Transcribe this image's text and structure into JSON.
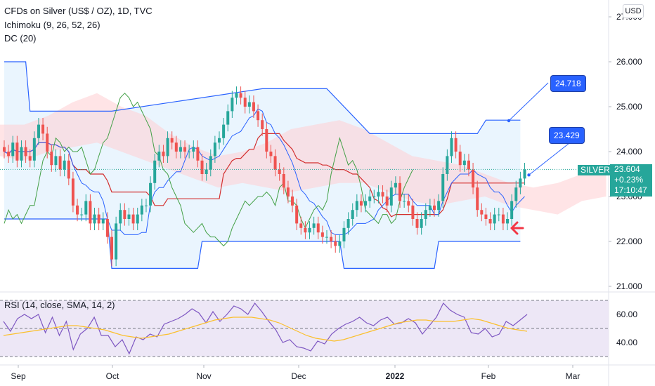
{
  "legend": {
    "title": "CFDs on Silver (US$ / OZ), 1D, TVC",
    "ichimoku": "Ichimoku (9, 26, 52, 26)",
    "dc": "DC (20)",
    "rsi": "RSI (14, close, SMA, 14, 2)"
  },
  "currency": "USD",
  "symbol_tag": "SILVER",
  "price_box": {
    "price": "23.604",
    "change": "+0.23%",
    "countdown": "17:10:47"
  },
  "callouts": {
    "upper": "24.718",
    "lower": "23.429"
  },
  "price_axis_labels": [
    "27.000",
    "26.000",
    "25.000",
    "24.000",
    "23.000",
    "22.000",
    "21.000"
  ],
  "rsi_axis_labels": [
    "60.00",
    "40.00"
  ],
  "time_axis_labels": [
    "Sep",
    "Oct",
    "Nov",
    "Dec",
    "2022",
    "Feb",
    "Mar"
  ],
  "colors": {
    "up": "#26a69a",
    "down": "#ef5350",
    "donchian": "#2962ff",
    "donchian_fill": "#e3f2fd",
    "tenkan": "#2962ff",
    "kijun": "#d32f2f",
    "chikou": "#43a047",
    "cloud_bull": "#c8e6c9",
    "cloud_bear": "#ffcdd2",
    "rsi_line": "#7e57c2",
    "rsi_ma": "#fbc02d",
    "rsi_band": "#ede7f6",
    "arrow": "#f23645"
  },
  "chart_data": {
    "type": "candlestick",
    "interval": "1D",
    "ylim": [
      21.0,
      27.0
    ],
    "x_month_ticks": [
      "Sep",
      "Oct",
      "Nov",
      "Dec",
      "2022",
      "Feb",
      "Mar"
    ],
    "close_series": [
      24.0,
      23.9,
      24.2,
      23.8,
      24.1,
      23.9,
      23.8,
      24.3,
      24.6,
      24.4,
      24.0,
      23.7,
      23.9,
      23.6,
      23.8,
      23.4,
      22.8,
      22.6,
      22.6,
      22.9,
      22.4,
      22.6,
      22.4,
      22.5,
      22.1,
      21.6,
      22.4,
      22.7,
      22.5,
      22.6,
      22.4,
      22.6,
      22.8,
      22.8,
      23.3,
      23.8,
      24.0,
      23.9,
      24.3,
      24.2,
      24.0,
      24.1,
      24.0,
      24.0,
      24.1,
      23.8,
      23.5,
      23.6,
      23.9,
      24.2,
      24.3,
      24.6,
      24.9,
      25.2,
      25.3,
      25.2,
      25.0,
      25.1,
      24.9,
      24.7,
      24.5,
      24.0,
      23.9,
      23.6,
      23.5,
      23.2,
      23.0,
      22.8,
      22.4,
      22.3,
      22.2,
      22.3,
      22.4,
      22.2,
      22.1,
      22.1,
      22.0,
      21.9,
      22.0,
      22.3,
      22.5,
      22.7,
      22.9,
      22.8,
      22.9,
      23.0,
      23.0,
      23.1,
      23.0,
      22.8,
      23.2,
      23.3,
      22.9,
      22.9,
      22.8,
      22.5,
      22.3,
      22.5,
      22.7,
      22.8,
      22.7,
      22.9,
      23.5,
      23.9,
      24.3,
      24.0,
      23.7,
      23.8,
      23.6,
      23.2,
      22.7,
      22.6,
      22.5,
      22.4,
      22.6,
      22.6,
      22.4,
      22.5,
      22.9,
      23.2,
      23.4,
      23.6
    ],
    "donchian_upper_points": [
      [
        0,
        26.0
      ],
      [
        5,
        26.0
      ],
      [
        6,
        24.9
      ],
      [
        24,
        24.9
      ],
      [
        25,
        24.9
      ],
      [
        60,
        25.4
      ],
      [
        75,
        25.4
      ],
      [
        85,
        24.4
      ],
      [
        110,
        24.4
      ],
      [
        112,
        24.7
      ],
      [
        120,
        24.7
      ]
    ],
    "donchian_lower_points": [
      [
        0,
        22.5
      ],
      [
        5,
        22.5
      ],
      [
        6,
        22.5
      ],
      [
        24,
        22.5
      ],
      [
        25,
        21.4
      ],
      [
        45,
        21.4
      ],
      [
        46,
        22.0
      ],
      [
        78,
        22.0
      ],
      [
        79,
        21.4
      ],
      [
        100,
        21.4
      ],
      [
        101,
        22.0
      ],
      [
        120,
        22.0
      ]
    ],
    "rsi": {
      "ylim": [
        30,
        70
      ],
      "levels": [
        70,
        50,
        30
      ],
      "values": [
        55,
        48,
        57,
        60,
        57,
        60,
        47,
        58,
        45,
        55,
        35,
        46,
        50,
        58,
        45,
        45,
        37,
        42,
        32,
        44,
        42,
        46,
        44,
        53,
        55,
        57,
        60,
        64,
        61,
        54,
        62,
        55,
        60,
        66,
        64,
        60,
        68,
        62,
        55,
        49,
        40,
        42,
        37,
        36,
        34,
        41,
        39,
        46,
        50,
        53,
        55,
        58,
        54,
        52,
        56,
        58,
        53,
        54,
        57,
        54,
        46,
        52,
        58,
        68,
        63,
        60,
        58,
        47,
        46,
        50,
        44,
        46,
        55,
        52,
        56,
        60
      ],
      "ma_values": [
        45,
        46,
        47,
        48,
        49,
        50,
        51,
        52,
        52,
        51,
        50,
        49,
        47,
        45,
        44,
        43,
        44,
        45,
        46,
        48,
        50,
        52,
        54,
        56,
        57,
        58,
        58,
        58,
        57,
        56,
        54,
        51,
        48,
        45,
        43,
        42,
        41,
        42,
        44,
        46,
        48,
        50,
        52,
        54,
        55,
        56,
        56,
        55,
        55,
        55,
        56,
        57,
        56,
        54,
        52,
        50,
        49,
        48
      ]
    },
    "last_price": 23.604,
    "change_pct": "+0.23%"
  }
}
